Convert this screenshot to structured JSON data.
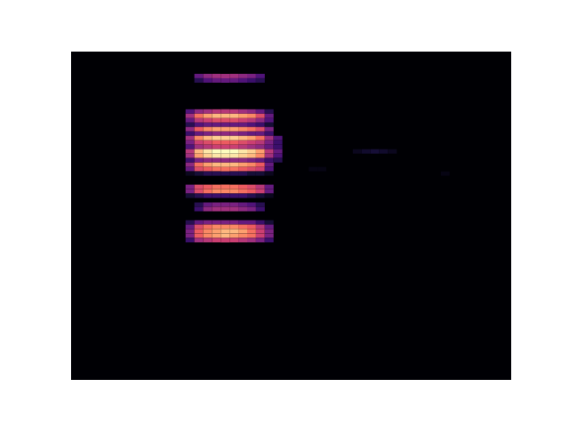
{
  "chart_data": {
    "type": "heatmap",
    "xlim": [
      0,
      50
    ],
    "ylim": [
      0,
      74
    ],
    "tick_labels": false,
    "color_range": [
      0,
      1
    ],
    "cells": [
      {
        "y": 68,
        "x": 14,
        "values": [
          0.3,
          0.4,
          0.45,
          0.45,
          0.45,
          0.4,
          0.35,
          0.25
        ]
      },
      {
        "y": 67,
        "x": 14,
        "values": [
          0.15,
          0.25,
          0.3,
          0.3,
          0.3,
          0.25,
          0.2,
          0.15
        ]
      },
      {
        "y": 60,
        "x": 13,
        "values": [
          0.25,
          0.4,
          0.45,
          0.5,
          0.5,
          0.5,
          0.45,
          0.4,
          0.3,
          0.15
        ]
      },
      {
        "y": 59,
        "x": 13,
        "values": [
          0.45,
          0.7,
          0.8,
          0.85,
          0.85,
          0.85,
          0.8,
          0.75,
          0.6,
          0.3
        ]
      },
      {
        "y": 58,
        "x": 13,
        "values": [
          0.3,
          0.5,
          0.55,
          0.6,
          0.6,
          0.6,
          0.55,
          0.5,
          0.4,
          0.25
        ]
      },
      {
        "y": 57,
        "x": 13,
        "values": [
          0.15,
          0.25,
          0.3,
          0.3,
          0.3,
          0.3,
          0.3,
          0.25,
          0.2,
          0.1
        ]
      },
      {
        "y": 56,
        "x": 13,
        "values": [
          0.4,
          0.65,
          0.75,
          0.8,
          0.8,
          0.8,
          0.75,
          0.7,
          0.6,
          0.35
        ]
      },
      {
        "y": 55,
        "x": 13,
        "values": [
          0.2,
          0.3,
          0.35,
          0.4,
          0.4,
          0.4,
          0.35,
          0.3,
          0.3,
          0.2
        ]
      },
      {
        "y": 54,
        "x": 13,
        "values": [
          0.45,
          0.75,
          0.85,
          0.9,
          0.9,
          0.9,
          0.85,
          0.8,
          0.7,
          0.45,
          0.25
        ]
      },
      {
        "y": 53,
        "x": 13,
        "values": [
          0.35,
          0.55,
          0.6,
          0.65,
          0.65,
          0.65,
          0.6,
          0.55,
          0.5,
          0.35,
          0.2
        ]
      },
      {
        "y": 52,
        "x": 13,
        "values": [
          0.25,
          0.45,
          0.5,
          0.55,
          0.55,
          0.55,
          0.5,
          0.45,
          0.4,
          0.3,
          0.2
        ]
      },
      {
        "y": 51,
        "x": 13,
        "values": [
          0.5,
          0.85,
          0.95,
          1,
          1,
          1,
          0.95,
          0.9,
          0.8,
          0.5,
          0.3
        ]
      },
      {
        "y": 50,
        "x": 13,
        "values": [
          0.45,
          0.8,
          0.9,
          0.95,
          0.95,
          0.95,
          0.9,
          0.85,
          0.75,
          0.45,
          0.25
        ]
      },
      {
        "y": 49,
        "x": 13,
        "values": [
          0.2,
          0.35,
          0.4,
          0.4,
          0.4,
          0.4,
          0.4,
          0.35,
          0.3,
          0.2,
          0.15
        ]
      },
      {
        "y": 48,
        "x": 13,
        "values": [
          0.4,
          0.7,
          0.8,
          0.85,
          0.85,
          0.85,
          0.8,
          0.75,
          0.65,
          0.3
        ]
      },
      {
        "y": 47,
        "x": 13,
        "values": [
          0.3,
          0.6,
          0.65,
          0.7,
          0.7,
          0.7,
          0.65,
          0.6,
          0.55,
          0.25
        ]
      },
      {
        "y": 46,
        "x": 13,
        "values": [
          0.05,
          0.1,
          0.15,
          0.15,
          0.15,
          0.15,
          0.15,
          0.1,
          0.1,
          0.05
        ]
      },
      {
        "y": 43,
        "x": 13,
        "values": [
          0.35,
          0.6,
          0.65,
          0.7,
          0.7,
          0.7,
          0.65,
          0.6,
          0.5,
          0.3
        ]
      },
      {
        "y": 42,
        "x": 13,
        "values": [
          0.35,
          0.6,
          0.7,
          0.75,
          0.75,
          0.75,
          0.7,
          0.65,
          0.55,
          0.3
        ]
      },
      {
        "y": 41,
        "x": 13,
        "values": [
          0.1,
          0.15,
          0.2,
          0.2,
          0.2,
          0.2,
          0.2,
          0.15,
          0.1,
          0.05
        ]
      },
      {
        "y": 39,
        "x": 14,
        "values": [
          0.15,
          0.3,
          0.35,
          0.35,
          0.35,
          0.3,
          0.25,
          0.15
        ]
      },
      {
        "y": 38,
        "x": 14,
        "values": [
          0.2,
          0.4,
          0.45,
          0.45,
          0.45,
          0.4,
          0.35,
          0.2
        ]
      },
      {
        "y": 35,
        "x": 13,
        "values": [
          0.15,
          0.3,
          0.35,
          0.35,
          0.35,
          0.35,
          0.3,
          0.3,
          0.2,
          0.1
        ]
      },
      {
        "y": 34,
        "x": 13,
        "values": [
          0.3,
          0.6,
          0.7,
          0.75,
          0.75,
          0.75,
          0.7,
          0.65,
          0.5,
          0.3
        ]
      },
      {
        "y": 33,
        "x": 13,
        "values": [
          0.35,
          0.65,
          0.75,
          0.8,
          0.85,
          0.85,
          0.8,
          0.7,
          0.55,
          0.35
        ]
      },
      {
        "y": 32,
        "x": 13,
        "values": [
          0.35,
          0.65,
          0.75,
          0.8,
          0.85,
          0.8,
          0.75,
          0.7,
          0.55,
          0.35
        ]
      },
      {
        "y": 31,
        "x": 13,
        "values": [
          0.2,
          0.45,
          0.5,
          0.55,
          0.55,
          0.55,
          0.5,
          0.45,
          0.35,
          0.2
        ]
      },
      {
        "y": 51,
        "x": 32,
        "values": [
          0.05,
          0.08,
          0.1,
          0.08,
          0.05
        ]
      },
      {
        "y": 47,
        "x": 27,
        "values": [
          0.03,
          0.03
        ]
      },
      {
        "y": 46,
        "x": 42,
        "values": [
          0.03
        ]
      }
    ]
  }
}
